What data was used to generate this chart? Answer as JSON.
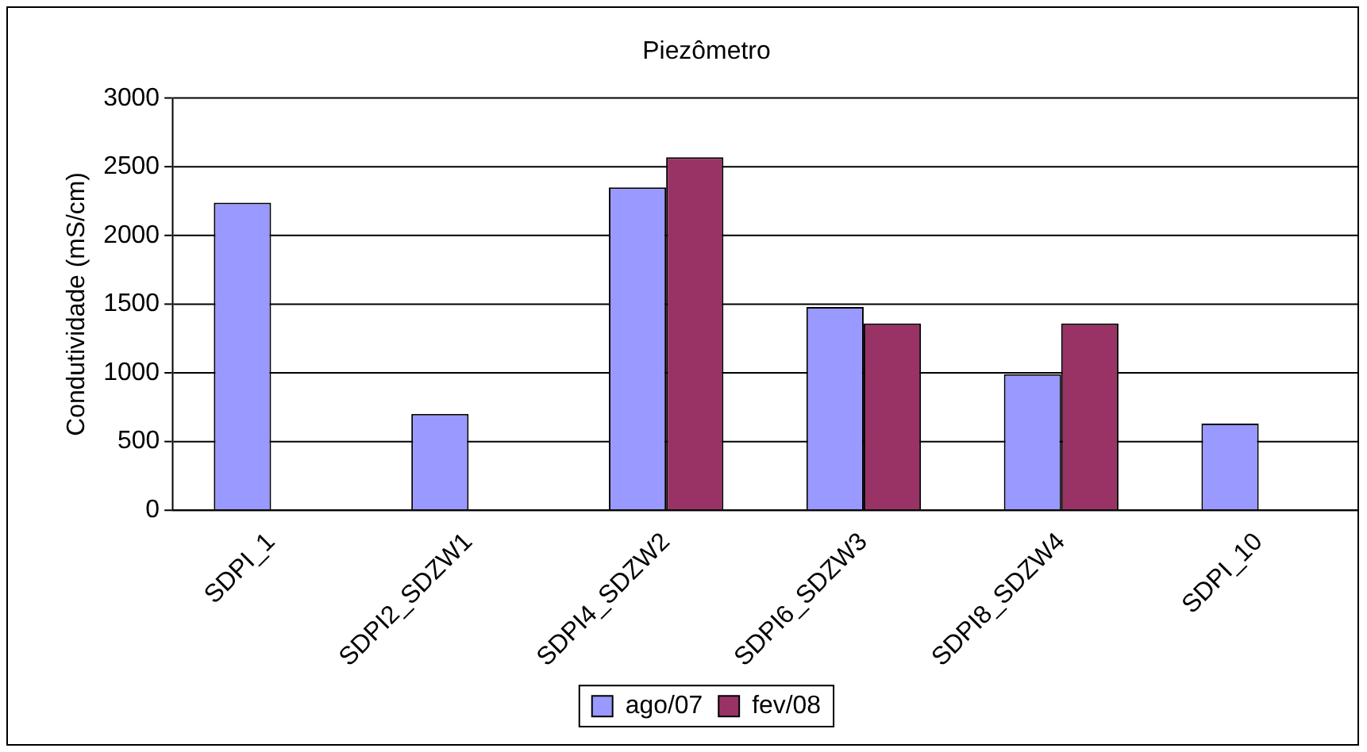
{
  "chart_data": {
    "type": "bar",
    "title": "Piezômetro",
    "ylabel": "Condutividade (mS/cm)",
    "categories": [
      "SDPI_1",
      "SDPI2_SDZW1",
      "SDPI4_SDZW2",
      "SDPI6_SDZW3",
      "SDPI8_SDZW4",
      "SDPI_10"
    ],
    "series": [
      {
        "name": "ago/07",
        "color": "#9999ff",
        "values": [
          2240,
          700,
          2350,
          1480,
          990,
          630
        ]
      },
      {
        "name": "fev/08",
        "color": "#993366",
        "values": [
          null,
          null,
          2570,
          1360,
          1360,
          null
        ]
      }
    ],
    "ylim": [
      0,
      3000
    ],
    "yticks": [
      0,
      500,
      1000,
      1500,
      2000,
      2500,
      3000
    ],
    "grid": "y",
    "legend": "bottom"
  }
}
